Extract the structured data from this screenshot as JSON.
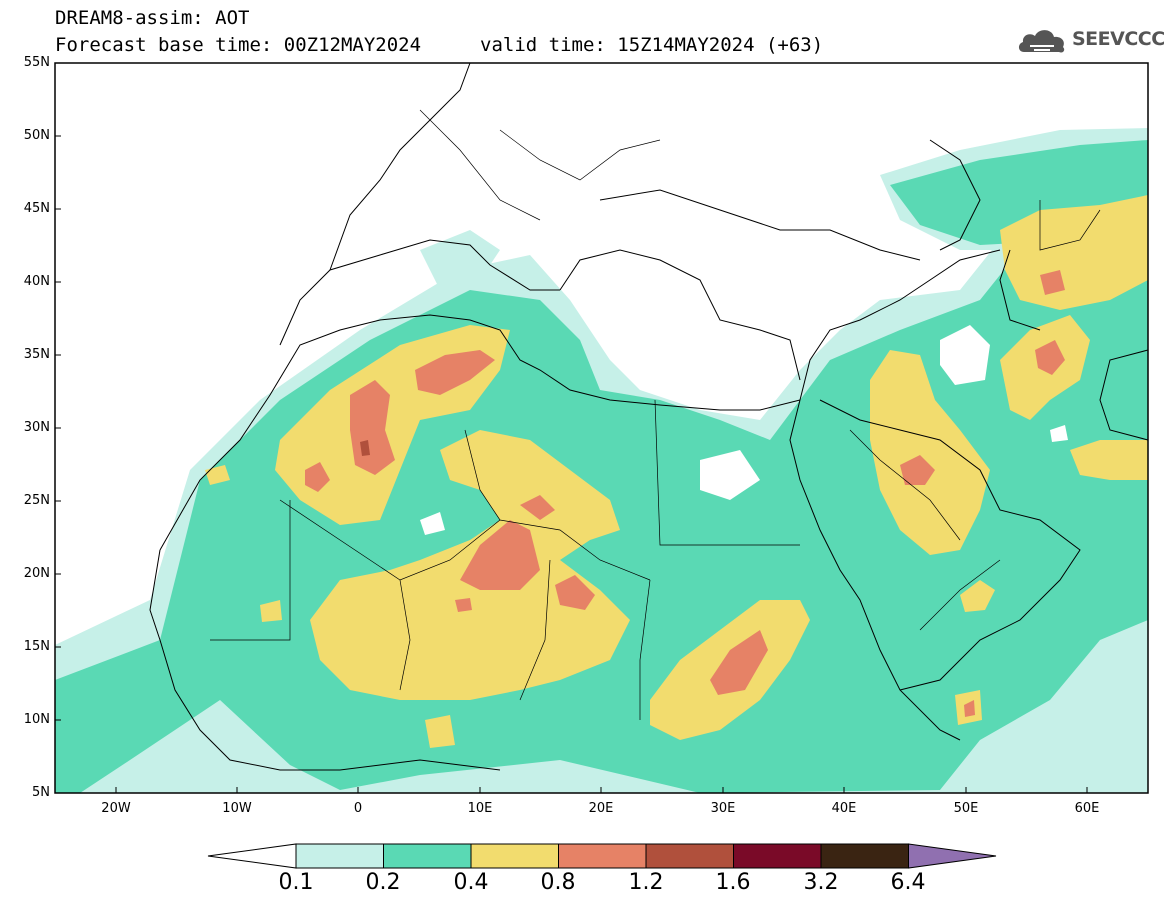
{
  "header": {
    "line1": "DREAM8-assim: AOT",
    "base_time": "Forecast base time: 00Z12MAY2024",
    "valid_time": "valid time: 15Z14MAY2024 (+63)"
  },
  "logo": {
    "text": "SEEVCCC",
    "icon": "cloud-icon"
  },
  "map": {
    "lat_labels": [
      "55N",
      "50N",
      "45N",
      "40N",
      "35N",
      "30N",
      "25N",
      "20N",
      "15N",
      "10N",
      "5N"
    ],
    "lon_labels": [
      "20W",
      "10W",
      "0",
      "10E",
      "20E",
      "30E",
      "40E",
      "50E",
      "60E"
    ]
  },
  "colorbar": {
    "labels": [
      "0.1",
      "0.2",
      "0.4",
      "0.8",
      "1.2",
      "1.6",
      "3.2",
      "6.4"
    ],
    "colors": [
      "#c6f0e8",
      "#5ad9b4",
      "#f2dc6e",
      "#e68266",
      "#b0503c",
      "#7a0a28",
      "#3a2412",
      "#9070b0"
    ]
  }
}
